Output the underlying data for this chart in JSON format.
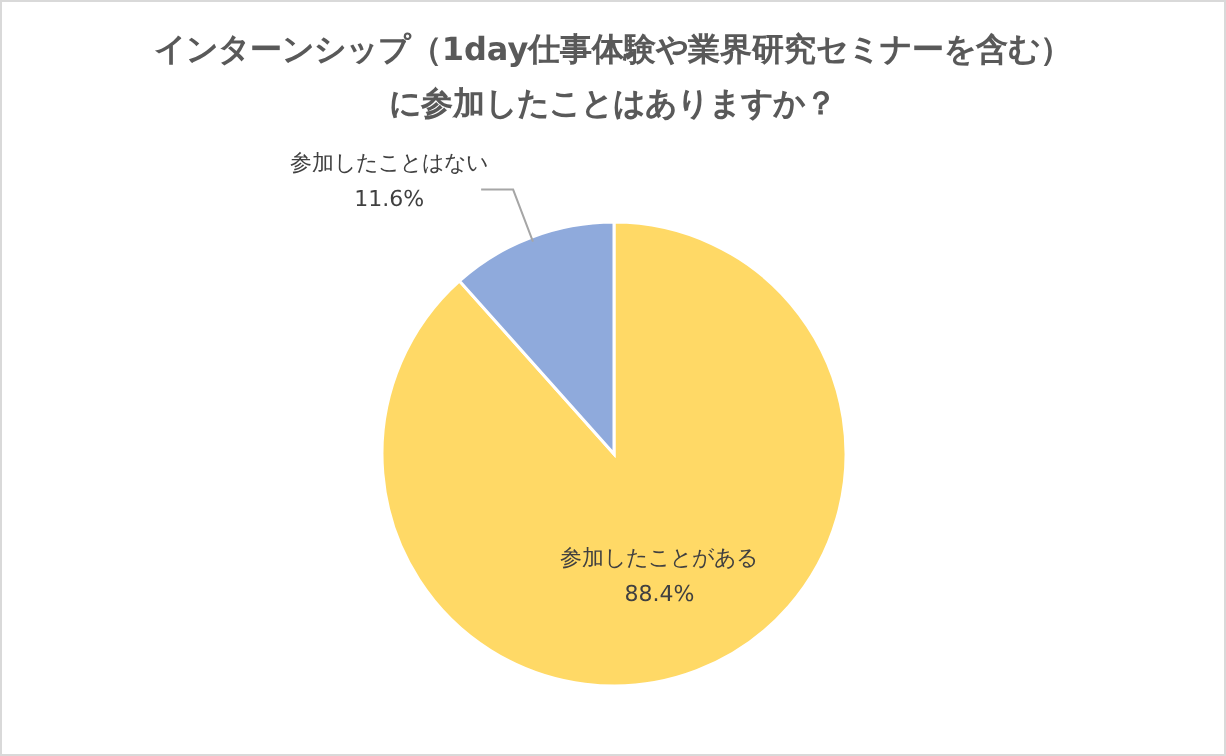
{
  "chart_data": {
    "type": "pie",
    "title": "インターンシップ（1day仕事体験や業界研究セミナーを含む）",
    "subtitle": "に参加したことはありますか？",
    "categories": [
      "参加したことがある",
      "参加したことはない"
    ],
    "values": [
      88.4,
      11.6
    ],
    "colors": [
      "#ffd966",
      "#8faadc"
    ],
    "value_labels": [
      "88.4%",
      "11.6%"
    ],
    "legend": false
  }
}
